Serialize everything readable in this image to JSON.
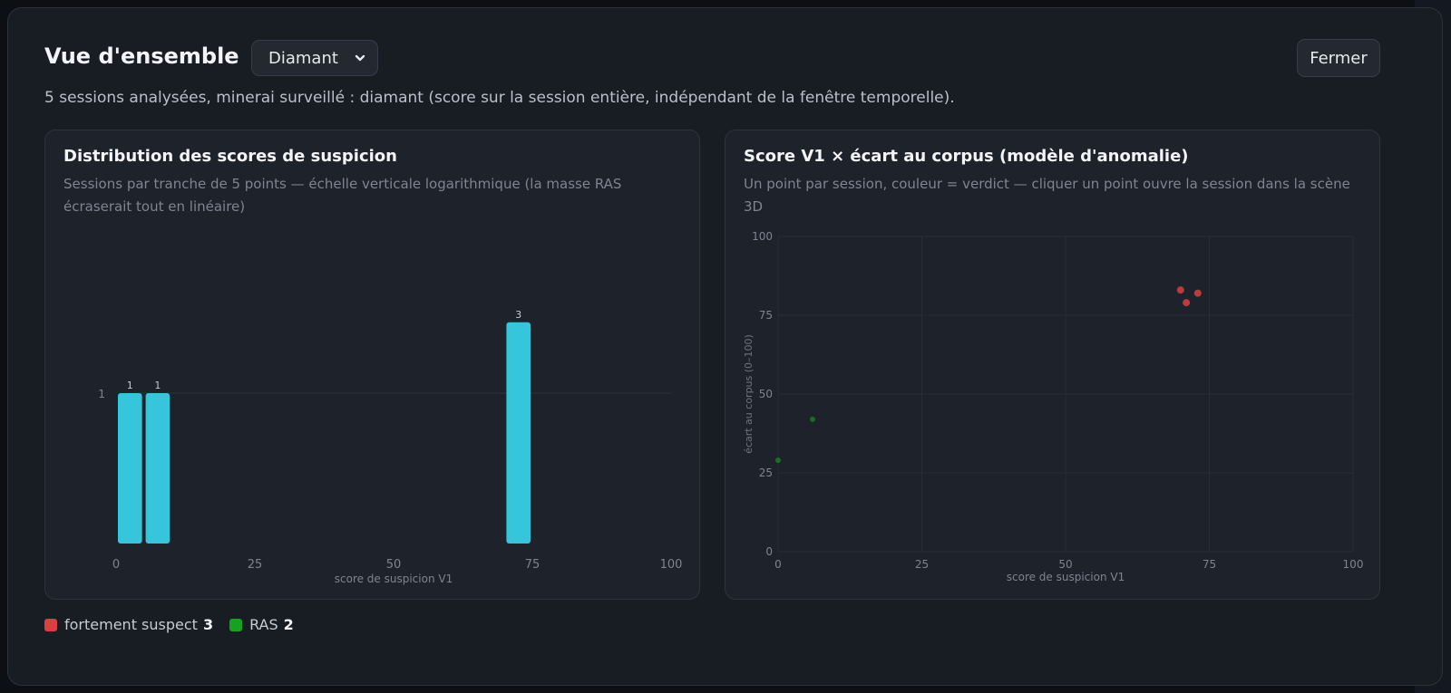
{
  "modal": {
    "title": "Vue d'ensemble",
    "ore_select": {
      "value": "Diamant"
    },
    "close_label": "Fermer",
    "subtitle": "5 sessions analysées, minerai surveillé : diamant (score sur la session entière, indépendant de la fenêtre temporelle)."
  },
  "colors": {
    "bar": "#36c6db",
    "suspect": "#d9403f",
    "ras": "#15a21e"
  },
  "histogram": {
    "title": "Distribution des scores de suspicion",
    "description": "Sessions par tranche de 5 points — échelle verticale logarithmique (la masse RAS écraserait tout en linéaire)",
    "x_ticks": [
      "0",
      "25",
      "50",
      "75",
      "100"
    ],
    "y_tick": "1",
    "xlabel": "score de suspicion V1"
  },
  "scatter": {
    "title": "Score V1 × écart au corpus (modèle d'anomalie)",
    "description": "Un point par session, couleur = verdict — cliquer un point ouvre la session dans la scène 3D",
    "x_ticks": [
      "0",
      "25",
      "50",
      "75",
      "100"
    ],
    "y_ticks": [
      "0",
      "25",
      "50",
      "75",
      "100"
    ],
    "xlabel": "score de suspicion V1",
    "ylabel": "écart au corpus (0–100)"
  },
  "chart_data": [
    {
      "type": "bar",
      "title": "Distribution des scores de suspicion",
      "xlabel": "score de suspicion V1",
      "ylabel": "",
      "y_scale": "log",
      "xlim": [
        0,
        100
      ],
      "bins": [
        {
          "range": [
            0,
            5
          ],
          "count": 1
        },
        {
          "range": [
            5,
            10
          ],
          "count": 1
        },
        {
          "range": [
            70,
            75
          ],
          "count": 3
        }
      ]
    },
    {
      "type": "scatter",
      "title": "Score V1 × écart au corpus (modèle d'anomalie)",
      "xlabel": "score de suspicion V1",
      "ylabel": "écart au corpus (0–100)",
      "xlim": [
        0,
        100
      ],
      "ylim": [
        0,
        100
      ],
      "grid": true,
      "series": [
        {
          "name": "fortement suspect",
          "color": "#d9403f",
          "points": [
            [
              70,
              83
            ],
            [
              71,
              79
            ],
            [
              73,
              82
            ]
          ]
        },
        {
          "name": "RAS",
          "color": "#15a21e",
          "points": [
            [
              0,
              29
            ],
            [
              6,
              42
            ]
          ]
        }
      ]
    }
  ],
  "legend": [
    {
      "label": "fortement suspect",
      "count": "3",
      "color": "#d9403f"
    },
    {
      "label": "RAS",
      "count": "2",
      "color": "#15a21e"
    }
  ]
}
